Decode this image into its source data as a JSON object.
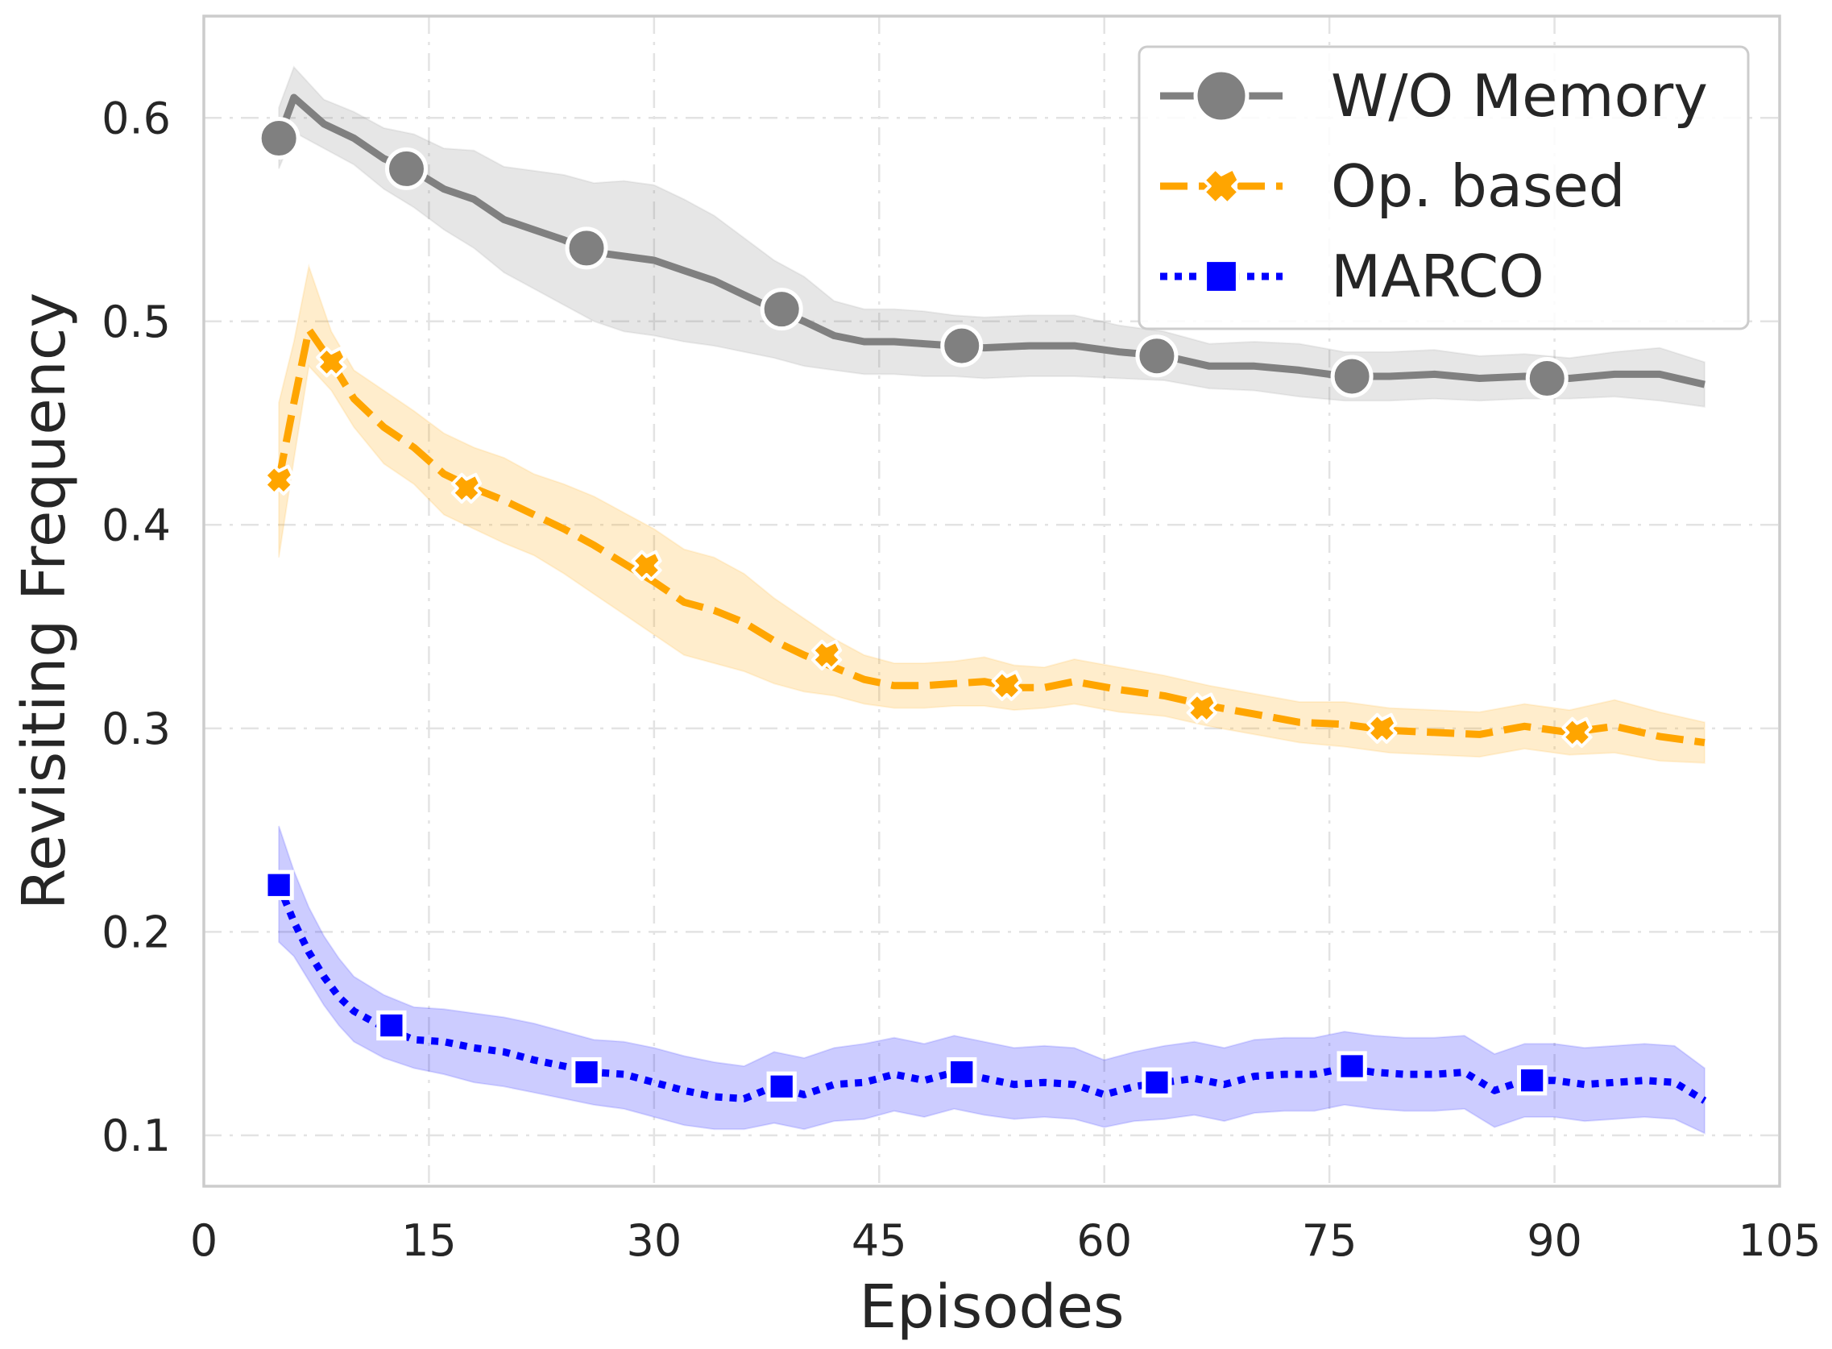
{
  "chart_data": {
    "type": "line",
    "title": "",
    "xlabel": "Episodes",
    "ylabel": "Revisiting Frequency",
    "xlim": [
      0,
      105
    ],
    "ylim": [
      0.075,
      0.65
    ],
    "xticks": [
      0,
      15,
      30,
      45,
      60,
      75,
      90,
      105
    ],
    "xtick_labels": [
      "0",
      "15",
      "30",
      "45",
      "60",
      "75",
      "90",
      "105"
    ],
    "yticks": [
      0.1,
      0.2,
      0.3,
      0.4,
      0.5,
      0.6
    ],
    "ytick_labels": [
      "0.1",
      "0.2",
      "0.3",
      "0.4",
      "0.5",
      "0.6"
    ],
    "grid": true,
    "legend_position": "top-right",
    "series": [
      {
        "name": "W/O Memory",
        "color": "#808080",
        "line_style": "solid",
        "marker": "circle",
        "x": [
          5,
          6,
          8,
          10,
          12,
          14,
          16,
          18,
          20,
          22,
          24,
          26,
          28,
          30,
          32,
          34,
          36,
          38,
          40,
          42,
          44,
          46,
          48,
          50,
          52,
          55,
          58,
          61,
          64,
          67,
          70,
          73,
          76,
          79,
          82,
          85,
          88,
          91,
          94,
          97,
          100
        ],
        "y": [
          0.59,
          0.61,
          0.597,
          0.59,
          0.58,
          0.574,
          0.565,
          0.56,
          0.55,
          0.545,
          0.54,
          0.534,
          0.532,
          0.53,
          0.525,
          0.52,
          0.513,
          0.506,
          0.5,
          0.493,
          0.49,
          0.49,
          0.489,
          0.488,
          0.487,
          0.488,
          0.488,
          0.485,
          0.483,
          0.478,
          0.478,
          0.476,
          0.473,
          0.473,
          0.474,
          0.472,
          0.473,
          0.472,
          0.474,
          0.474,
          0.469
        ],
        "band_lower": [
          0.575,
          0.593,
          0.585,
          0.577,
          0.565,
          0.556,
          0.545,
          0.536,
          0.524,
          0.516,
          0.508,
          0.5,
          0.495,
          0.493,
          0.49,
          0.488,
          0.485,
          0.482,
          0.478,
          0.476,
          0.474,
          0.474,
          0.473,
          0.473,
          0.472,
          0.473,
          0.473,
          0.472,
          0.471,
          0.467,
          0.466,
          0.463,
          0.461,
          0.461,
          0.462,
          0.461,
          0.462,
          0.462,
          0.463,
          0.461,
          0.458
        ],
        "band_upper": [
          0.605,
          0.625,
          0.609,
          0.603,
          0.595,
          0.592,
          0.585,
          0.584,
          0.576,
          0.574,
          0.572,
          0.568,
          0.569,
          0.567,
          0.56,
          0.552,
          0.541,
          0.53,
          0.522,
          0.51,
          0.506,
          0.506,
          0.505,
          0.503,
          0.502,
          0.503,
          0.503,
          0.498,
          0.495,
          0.489,
          0.49,
          0.489,
          0.485,
          0.485,
          0.486,
          0.483,
          0.484,
          0.482,
          0.485,
          0.487,
          0.48
        ],
        "marker_x": [
          5,
          13.5,
          25.5,
          38.5,
          50.5,
          63.5,
          76.5,
          89.5
        ],
        "marker_y": [
          0.59,
          0.575,
          0.536,
          0.506,
          0.488,
          0.483,
          0.473,
          0.472
        ]
      },
      {
        "name": "Op. based",
        "color": "#ffa500",
        "line_style": "dashed",
        "marker": "x",
        "x": [
          5,
          6,
          7,
          8.5,
          10,
          12,
          14,
          16,
          18,
          20,
          22,
          24,
          26,
          28,
          30,
          32,
          34,
          36,
          38,
          40,
          42,
          44,
          46,
          48,
          50,
          52,
          54,
          56,
          58,
          61,
          64,
          67,
          70,
          73,
          76,
          79,
          82,
          85,
          88,
          91,
          94,
          97,
          100
        ],
        "y": [
          0.422,
          0.46,
          0.496,
          0.48,
          0.462,
          0.448,
          0.438,
          0.425,
          0.418,
          0.412,
          0.405,
          0.398,
          0.39,
          0.381,
          0.372,
          0.362,
          0.358,
          0.352,
          0.343,
          0.336,
          0.33,
          0.324,
          0.321,
          0.321,
          0.322,
          0.323,
          0.32,
          0.32,
          0.323,
          0.319,
          0.316,
          0.311,
          0.307,
          0.303,
          0.302,
          0.299,
          0.298,
          0.297,
          0.301,
          0.298,
          0.301,
          0.296,
          0.293
        ],
        "band_lower": [
          0.384,
          0.432,
          0.478,
          0.466,
          0.448,
          0.43,
          0.42,
          0.405,
          0.398,
          0.391,
          0.385,
          0.376,
          0.366,
          0.356,
          0.346,
          0.336,
          0.332,
          0.328,
          0.322,
          0.318,
          0.316,
          0.312,
          0.31,
          0.31,
          0.311,
          0.311,
          0.309,
          0.31,
          0.312,
          0.308,
          0.306,
          0.301,
          0.297,
          0.293,
          0.291,
          0.288,
          0.287,
          0.286,
          0.29,
          0.287,
          0.288,
          0.284,
          0.283
        ],
        "band_upper": [
          0.46,
          0.49,
          0.527,
          0.495,
          0.476,
          0.466,
          0.456,
          0.445,
          0.438,
          0.433,
          0.425,
          0.42,
          0.414,
          0.406,
          0.398,
          0.388,
          0.384,
          0.376,
          0.364,
          0.354,
          0.344,
          0.336,
          0.332,
          0.332,
          0.333,
          0.335,
          0.331,
          0.33,
          0.334,
          0.33,
          0.326,
          0.321,
          0.317,
          0.313,
          0.313,
          0.31,
          0.309,
          0.308,
          0.312,
          0.309,
          0.314,
          0.308,
          0.303
        ],
        "marker_x": [
          5,
          8.5,
          17.5,
          29.5,
          41.5,
          53.5,
          66.5,
          78.5,
          91.5
        ],
        "marker_y": [
          0.422,
          0.48,
          0.418,
          0.38,
          0.336,
          0.321,
          0.31,
          0.3,
          0.298
        ]
      },
      {
        "name": "MARCO",
        "color": "#0000ff",
        "line_style": "dotted",
        "marker": "square",
        "x": [
          5,
          6,
          7,
          8,
          9,
          10,
          12,
          14,
          16,
          18,
          20,
          22,
          24,
          26,
          28,
          30,
          32,
          34,
          36,
          38,
          40,
          42,
          44,
          46,
          48,
          50,
          52,
          54,
          56,
          58,
          60,
          62,
          64,
          66,
          68,
          70,
          72,
          74,
          76,
          78,
          80,
          82,
          84,
          86,
          88,
          90,
          92,
          94,
          96,
          98,
          100
        ],
        "y": [
          0.223,
          0.205,
          0.19,
          0.178,
          0.168,
          0.161,
          0.153,
          0.147,
          0.146,
          0.143,
          0.141,
          0.137,
          0.134,
          0.131,
          0.13,
          0.126,
          0.122,
          0.119,
          0.118,
          0.124,
          0.12,
          0.125,
          0.126,
          0.13,
          0.127,
          0.131,
          0.128,
          0.125,
          0.126,
          0.125,
          0.12,
          0.124,
          0.126,
          0.128,
          0.125,
          0.129,
          0.13,
          0.13,
          0.133,
          0.131,
          0.13,
          0.13,
          0.131,
          0.122,
          0.127,
          0.127,
          0.125,
          0.126,
          0.127,
          0.126,
          0.117
        ],
        "band_lower": [
          0.195,
          0.188,
          0.176,
          0.164,
          0.154,
          0.146,
          0.138,
          0.133,
          0.13,
          0.126,
          0.124,
          0.121,
          0.118,
          0.115,
          0.113,
          0.109,
          0.105,
          0.103,
          0.103,
          0.106,
          0.103,
          0.107,
          0.108,
          0.112,
          0.109,
          0.113,
          0.11,
          0.108,
          0.109,
          0.108,
          0.104,
          0.107,
          0.108,
          0.11,
          0.107,
          0.111,
          0.112,
          0.112,
          0.115,
          0.113,
          0.112,
          0.112,
          0.113,
          0.104,
          0.109,
          0.109,
          0.107,
          0.108,
          0.109,
          0.108,
          0.101
        ],
        "band_upper": [
          0.252,
          0.23,
          0.212,
          0.198,
          0.187,
          0.178,
          0.169,
          0.163,
          0.162,
          0.16,
          0.158,
          0.155,
          0.151,
          0.147,
          0.146,
          0.143,
          0.139,
          0.136,
          0.134,
          0.141,
          0.138,
          0.143,
          0.145,
          0.148,
          0.145,
          0.149,
          0.146,
          0.143,
          0.144,
          0.143,
          0.137,
          0.141,
          0.144,
          0.146,
          0.143,
          0.147,
          0.148,
          0.148,
          0.151,
          0.149,
          0.148,
          0.148,
          0.149,
          0.14,
          0.145,
          0.145,
          0.143,
          0.144,
          0.145,
          0.144,
          0.133
        ],
        "marker_x": [
          5,
          12.5,
          25.5,
          38.5,
          50.5,
          63.5,
          76.5,
          88.5
        ],
        "marker_y": [
          0.223,
          0.154,
          0.131,
          0.124,
          0.131,
          0.126,
          0.134,
          0.127
        ]
      }
    ]
  }
}
